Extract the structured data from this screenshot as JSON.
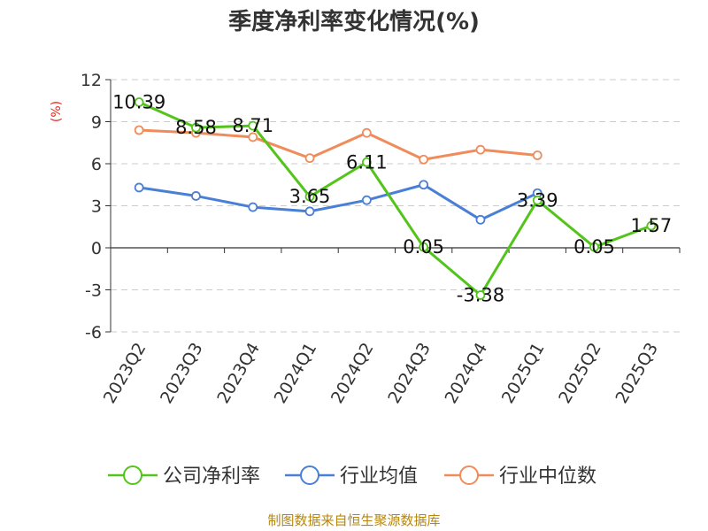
{
  "chart_data": {
    "type": "line",
    "title": "季度净利率变化情况(%)",
    "ylabel": "(%)",
    "categories": [
      "2023Q2",
      "2023Q3",
      "2023Q4",
      "2024Q1",
      "2024Q2",
      "2024Q3",
      "2024Q4",
      "2025Q1",
      "2025Q2",
      "2025Q3"
    ],
    "yticks": [
      "12",
      "9",
      "6",
      "3",
      "0",
      "-3",
      "-6"
    ],
    "ylim": [
      -6,
      12
    ],
    "grid": true,
    "legend_position": "bottom",
    "series": [
      {
        "name": "公司净利率",
        "color": "#52c41a",
        "values": [
          10.39,
          8.58,
          8.71,
          3.65,
          6.11,
          0.05,
          -3.38,
          3.39,
          0.05,
          1.57
        ],
        "labels": [
          "10.39",
          "8.58",
          "8.71",
          "3.65",
          "6.11",
          "0.05",
          "-3.38",
          "3.39",
          "0.05",
          "1.57"
        ]
      },
      {
        "name": "行业均值",
        "color": "#4a7fd6",
        "values": [
          4.3,
          3.7,
          2.9,
          2.6,
          3.4,
          4.5,
          2.0,
          3.9,
          null,
          null
        ]
      },
      {
        "name": "行业中位数",
        "color": "#f08c5a",
        "values": [
          8.4,
          8.2,
          7.9,
          6.4,
          8.2,
          6.3,
          7.0,
          6.6,
          null,
          null
        ]
      }
    ]
  },
  "source": "制图数据来自恒生聚源数据库"
}
